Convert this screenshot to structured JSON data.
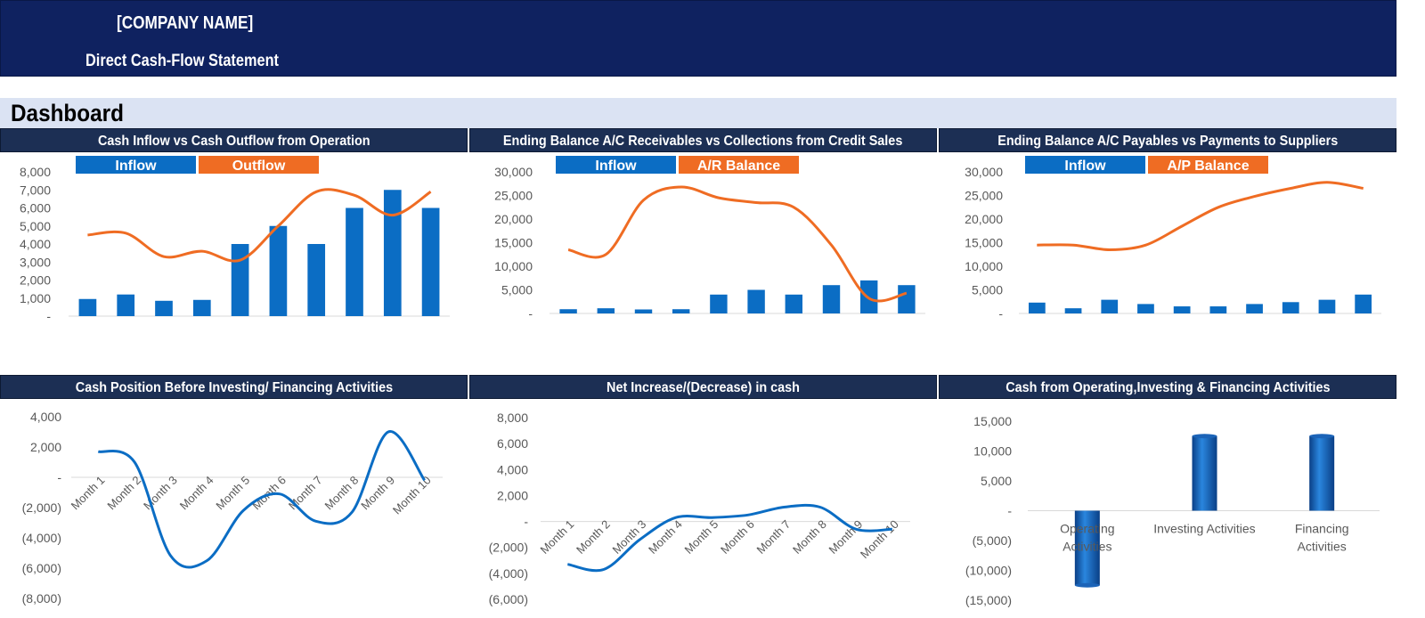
{
  "header": {
    "company": "[COMPANY NAME]",
    "subtitle": "Direct Cash-Flow Statement"
  },
  "dashboard_title": "Dashboard",
  "colors": {
    "blue": "#0b6dc4",
    "orange": "#ef6c23",
    "navy": "#0f2260",
    "panel": "#1c2f54"
  },
  "chart_data": [
    {
      "id": "c1",
      "type": "bar+line",
      "title": "Cash Inflow vs Cash Outflow from Operation",
      "legend": [
        "Inflow",
        "Outflow"
      ],
      "yticks": [
        "8,000",
        "7,000",
        "6,000",
        "5,000",
        "4,000",
        "3,000",
        "2,000",
        "1,000",
        "-"
      ],
      "ylim": [
        0,
        8000
      ],
      "bars": [
        950,
        1200,
        850,
        900,
        4000,
        5000,
        4000,
        6000,
        7000,
        6000
      ],
      "line": [
        4500,
        4600,
        3300,
        3600,
        3100,
        5000,
        6900,
        6700,
        5600,
        6900
      ]
    },
    {
      "id": "c2",
      "type": "bar+line",
      "title": "Ending Balance A/C Receivables  vs Collections from Credit Sales",
      "legend": [
        "Inflow",
        "A/R Balance"
      ],
      "yticks": [
        "30,000",
        "25,000",
        "20,000",
        "15,000",
        "10,000",
        "5,000",
        "-"
      ],
      "ylim": [
        0,
        30000
      ],
      "bars": [
        900,
        1100,
        850,
        900,
        4000,
        5000,
        4000,
        6000,
        7000,
        6000
      ],
      "line": [
        13500,
        12500,
        24000,
        26800,
        24500,
        23500,
        22500,
        14500,
        3200,
        4300
      ]
    },
    {
      "id": "c3",
      "type": "bar+line",
      "title": "Ending Balance A/C Payables vs Payments to Suppliers",
      "legend": [
        "Inflow",
        "A/P Balance"
      ],
      "yticks": [
        "30,000",
        "25,000",
        "20,000",
        "15,000",
        "10,000",
        "5,000",
        "-"
      ],
      "ylim": [
        0,
        30000
      ],
      "bars": [
        2300,
        1100,
        2900,
        2000,
        1500,
        1500,
        2000,
        2400,
        2900,
        4000
      ],
      "line": [
        14500,
        14500,
        13500,
        14500,
        18500,
        22500,
        24800,
        26500,
        27800,
        26500
      ]
    },
    {
      "id": "c4",
      "type": "line",
      "title": "Cash Position Before Investing/  Financing Activities",
      "yticks": [
        "4,000",
        "2,000",
        "-",
        "(2,000)",
        "(4,000)",
        "(6,000)",
        "(8,000)"
      ],
      "ylim": [
        -8000,
        4000
      ],
      "categories": [
        "Month 1",
        "Month 2",
        "Month 3",
        "Month 4",
        "Month 5",
        "Month 6",
        "Month 7",
        "Month 8",
        "Month 9",
        "Month 10"
      ],
      "values": [
        1700,
        1000,
        -5200,
        -5500,
        -2200,
        -1100,
        -2900,
        -2300,
        3000,
        -200
      ]
    },
    {
      "id": "c5",
      "type": "line",
      "title": "Net Increase/(Decrease)  in cash",
      "yticks": [
        "8,000",
        "6,000",
        "4,000",
        "2,000",
        "-",
        "(2,000)",
        "(4,000)",
        "(6,000)"
      ],
      "ylim": [
        -6000,
        8000
      ],
      "categories": [
        "Month 1",
        "Month 2",
        "Month 3",
        "Month 4",
        "Month 5",
        "Month 6",
        "Month 7",
        "Month 8",
        "Month 9",
        "Month 10"
      ],
      "values": [
        -3300,
        -3700,
        -1400,
        300,
        300,
        500,
        1100,
        1100,
        -600,
        -600
      ]
    },
    {
      "id": "c6",
      "type": "bar",
      "title": "Cash from Operating,Investing  & Financing Activities",
      "yticks": [
        "15,000",
        "10,000",
        "5,000",
        "-",
        "(5,000)",
        "(10,000)",
        "(15,000)"
      ],
      "ylim": [
        -15000,
        15000
      ],
      "categories": [
        "Operating Activities",
        "Investing Activities",
        "Financing Activities"
      ],
      "values": [
        -12500,
        12500,
        12500
      ]
    }
  ]
}
